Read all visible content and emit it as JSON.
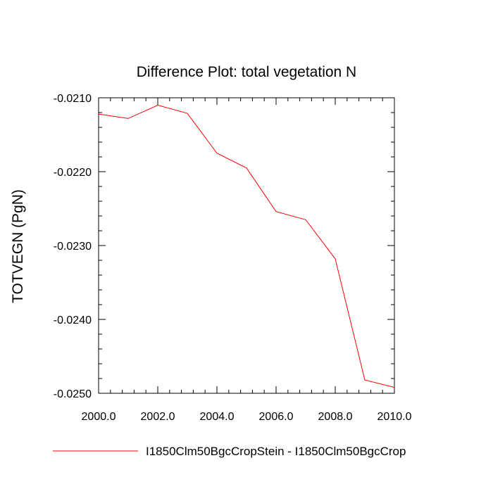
{
  "chart_data": {
    "type": "line",
    "title": "Difference Plot: total vegetation N",
    "xlabel": "",
    "ylabel": "TOTVEGN  (PgN)",
    "xlim": [
      2000,
      2010
    ],
    "ylim": [
      -0.025,
      -0.021
    ],
    "x_ticks": [
      2000,
      2002,
      2004,
      2006,
      2008,
      2010
    ],
    "x_tick_labels": [
      "2000.0",
      "2002.0",
      "2004.0",
      "2006.0",
      "2008.0",
      "2010.0"
    ],
    "y_ticks": [
      -0.021,
      -0.022,
      -0.023,
      -0.024,
      -0.025
    ],
    "y_tick_labels": [
      "-0.0210",
      "-0.0220",
      "-0.0230",
      "-0.0240",
      "-0.0250"
    ],
    "grid": false,
    "legend_position": "bottom",
    "series": [
      {
        "name": "I1850Clm50BgcCropStein - I1850Clm50BgcCrop",
        "color": "#ff0000",
        "x": [
          2000,
          2001,
          2002,
          2003,
          2004,
          2005,
          2006,
          2007,
          2008,
          2009,
          2010
        ],
        "y": [
          -0.02122,
          -0.02128,
          -0.0211,
          -0.02121,
          -0.02175,
          -0.02195,
          -0.02254,
          -0.02265,
          -0.02318,
          -0.02482,
          -0.02492
        ]
      }
    ]
  }
}
